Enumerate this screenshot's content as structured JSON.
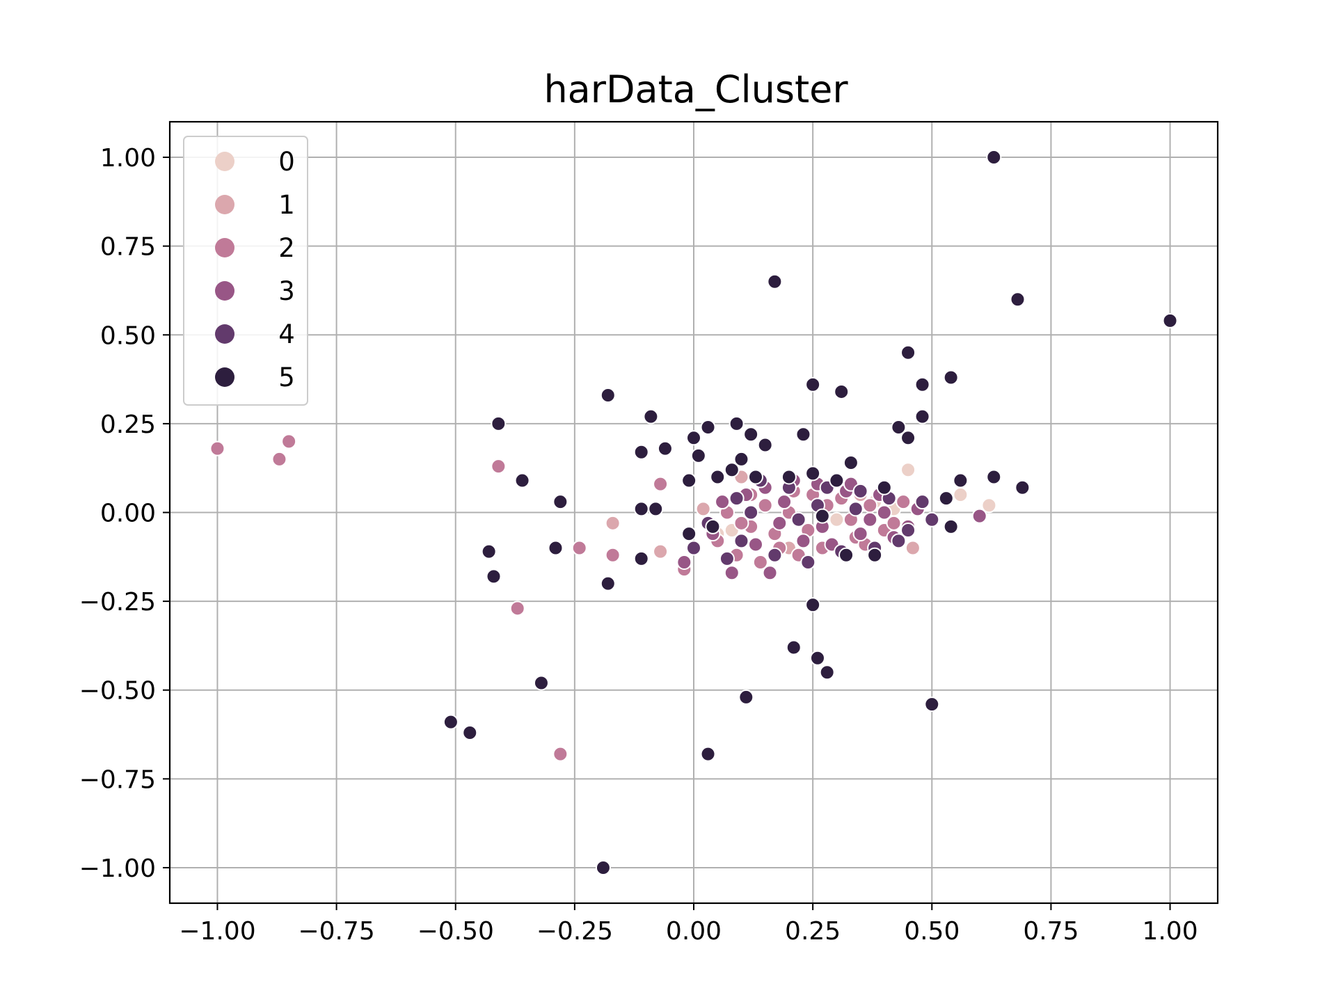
{
  "chart_data": {
    "type": "scatter",
    "title": "harData_Cluster",
    "xlabel": "",
    "ylabel": "",
    "xlim": [
      -1.1,
      1.1
    ],
    "ylim": [
      -1.1,
      1.1
    ],
    "xticks": [
      -1.0,
      -0.75,
      -0.5,
      -0.25,
      0.0,
      0.25,
      0.5,
      0.75,
      1.0
    ],
    "xtick_labels": [
      "−1.00",
      "−0.75",
      "−0.50",
      "−0.25",
      "0.00",
      "0.25",
      "0.50",
      "0.75",
      "1.00"
    ],
    "yticks": [
      1.0,
      0.75,
      0.5,
      0.25,
      0.0,
      -0.25,
      -0.5,
      -0.75,
      -1.0
    ],
    "ytick_labels": [
      "1.00",
      "0.75",
      "0.50",
      "0.25",
      "0.00",
      "−0.25",
      "−0.50",
      "−0.75",
      "−1.00"
    ],
    "grid": true,
    "legend_position": "top-left",
    "legend": [
      {
        "label": "0",
        "color": "#ecd0c8"
      },
      {
        "label": "1",
        "color": "#dba7ad"
      },
      {
        "label": "2",
        "color": "#c07a98"
      },
      {
        "label": "3",
        "color": "#985686"
      },
      {
        "label": "4",
        "color": "#623a6c"
      },
      {
        "label": "5",
        "color": "#2d1e3e"
      }
    ],
    "series": [
      {
        "name": "0",
        "color": "#ecd0c8",
        "points": [
          [
            0.45,
            0.12
          ],
          [
            0.56,
            0.05
          ],
          [
            0.62,
            0.02
          ],
          [
            0.05,
            -0.06
          ],
          [
            0.08,
            -0.05
          ],
          [
            0.38,
            0.03
          ],
          [
            0.3,
            -0.02
          ],
          [
            0.42,
            0.01
          ]
        ]
      },
      {
        "name": "1",
        "color": "#dba7ad",
        "points": [
          [
            -0.17,
            -0.03
          ],
          [
            -0.07,
            -0.11
          ],
          [
            0.02,
            0.01
          ],
          [
            0.46,
            -0.1
          ],
          [
            0.6,
            -0.01
          ],
          [
            0.1,
            0.1
          ],
          [
            0.2,
            -0.1
          ],
          [
            0.35,
            0.05
          ]
        ]
      },
      {
        "name": "2",
        "color": "#c07a98",
        "points": [
          [
            -1.0,
            0.18
          ],
          [
            -0.87,
            0.15
          ],
          [
            -0.85,
            0.2
          ],
          [
            -0.41,
            0.13
          ],
          [
            -0.37,
            -0.27
          ],
          [
            -0.28,
            -0.68
          ],
          [
            -0.24,
            -0.1
          ],
          [
            -0.17,
            -0.12
          ],
          [
            -0.07,
            0.08
          ],
          [
            -0.02,
            -0.16
          ],
          [
            0.05,
            -0.08
          ],
          [
            0.09,
            -0.12
          ],
          [
            0.12,
            -0.04
          ],
          [
            0.15,
            0.02
          ],
          [
            0.18,
            -0.1
          ],
          [
            0.21,
            0.06
          ],
          [
            0.24,
            -0.05
          ],
          [
            0.27,
            -0.1
          ],
          [
            0.31,
            0.04
          ],
          [
            0.34,
            -0.07
          ],
          [
            0.37,
            0.02
          ],
          [
            0.4,
            -0.05
          ],
          [
            0.44,
            0.03
          ],
          [
            0.14,
            -0.14
          ],
          [
            0.2,
            0.0
          ],
          [
            0.1,
            -0.03
          ],
          [
            0.28,
            0.02
          ],
          [
            0.33,
            -0.02
          ],
          [
            0.25,
            0.05
          ],
          [
            0.17,
            -0.06
          ],
          [
            0.07,
            0.0
          ],
          [
            0.22,
            -0.12
          ],
          [
            0.36,
            -0.09
          ],
          [
            0.42,
            -0.03
          ],
          [
            0.12,
            0.05
          ]
        ]
      },
      {
        "name": "3",
        "color": "#985686",
        "points": [
          [
            -0.02,
            -0.14
          ],
          [
            0.04,
            -0.06
          ],
          [
            0.08,
            -0.17
          ],
          [
            0.11,
            0.05
          ],
          [
            0.16,
            -0.17
          ],
          [
            0.19,
            0.03
          ],
          [
            0.23,
            -0.08
          ],
          [
            0.26,
            0.08
          ],
          [
            0.29,
            -0.09
          ],
          [
            0.32,
            0.06
          ],
          [
            0.35,
            -0.06
          ],
          [
            0.39,
            0.05
          ],
          [
            0.42,
            -0.07
          ],
          [
            0.47,
            0.01
          ],
          [
            0.5,
            -0.02
          ],
          [
            0.6,
            -0.01
          ],
          [
            0.13,
            -0.09
          ],
          [
            0.21,
            0.09
          ],
          [
            0.37,
            -0.02
          ],
          [
            0.45,
            -0.04
          ],
          [
            0.06,
            0.03
          ],
          [
            0.27,
            -0.04
          ],
          [
            0.15,
            0.07
          ],
          [
            0.33,
            0.08
          ],
          [
            0.4,
            0.0
          ],
          [
            0.18,
            -0.03
          ]
        ]
      },
      {
        "name": "4",
        "color": "#623a6c",
        "points": [
          [
            0.0,
            -0.1
          ],
          [
            0.03,
            -0.03
          ],
          [
            0.07,
            -0.13
          ],
          [
            0.1,
            -0.08
          ],
          [
            0.14,
            0.09
          ],
          [
            0.17,
            -0.12
          ],
          [
            0.2,
            0.07
          ],
          [
            0.24,
            -0.14
          ],
          [
            0.28,
            0.07
          ],
          [
            0.31,
            -0.11
          ],
          [
            0.35,
            0.06
          ],
          [
            0.38,
            -0.1
          ],
          [
            0.41,
            0.04
          ],
          [
            0.45,
            -0.05
          ],
          [
            0.48,
            0.03
          ],
          [
            0.5,
            -0.02
          ],
          [
            0.26,
            0.02
          ],
          [
            0.12,
            0.0
          ],
          [
            0.34,
            0.01
          ],
          [
            0.22,
            -0.02
          ],
          [
            0.43,
            -0.08
          ],
          [
            0.09,
            0.04
          ]
        ]
      },
      {
        "name": "5",
        "color": "#2d1e3e",
        "points": [
          [
            0.63,
            1.0
          ],
          [
            0.17,
            0.65
          ],
          [
            0.68,
            0.6
          ],
          [
            1.0,
            0.54
          ],
          [
            0.45,
            0.45
          ],
          [
            0.54,
            0.38
          ],
          [
            0.48,
            0.36
          ],
          [
            0.25,
            0.36
          ],
          [
            0.31,
            0.34
          ],
          [
            -0.18,
            0.33
          ],
          [
            -0.09,
            0.27
          ],
          [
            0.48,
            0.27
          ],
          [
            -0.41,
            0.25
          ],
          [
            0.03,
            0.24
          ],
          [
            0.09,
            0.25
          ],
          [
            0.43,
            0.24
          ],
          [
            0.45,
            0.21
          ],
          [
            0.23,
            0.22
          ],
          [
            0.12,
            0.22
          ],
          [
            0.0,
            0.21
          ],
          [
            0.15,
            0.19
          ],
          [
            -0.06,
            0.18
          ],
          [
            -0.11,
            0.17
          ],
          [
            0.01,
            0.16
          ],
          [
            0.1,
            0.15
          ],
          [
            0.33,
            0.14
          ],
          [
            0.08,
            0.12
          ],
          [
            -0.36,
            0.09
          ],
          [
            -0.01,
            0.09
          ],
          [
            0.05,
            0.1
          ],
          [
            0.63,
            0.1
          ],
          [
            0.56,
            0.09
          ],
          [
            0.69,
            0.07
          ],
          [
            -0.28,
            0.03
          ],
          [
            -0.11,
            0.01
          ],
          [
            -0.08,
            0.01
          ],
          [
            0.53,
            0.04
          ],
          [
            0.27,
            -0.01
          ],
          [
            0.04,
            -0.04
          ],
          [
            0.54,
            -0.04
          ],
          [
            -0.01,
            -0.06
          ],
          [
            -0.43,
            -0.11
          ],
          [
            -0.29,
            -0.1
          ],
          [
            -0.11,
            -0.13
          ],
          [
            -0.42,
            -0.18
          ],
          [
            -0.18,
            -0.2
          ],
          [
            0.32,
            -0.12
          ],
          [
            0.38,
            -0.12
          ],
          [
            0.25,
            -0.26
          ],
          [
            0.21,
            -0.38
          ],
          [
            0.26,
            -0.41
          ],
          [
            0.28,
            -0.45
          ],
          [
            -0.32,
            -0.48
          ],
          [
            0.11,
            -0.52
          ],
          [
            0.5,
            -0.54
          ],
          [
            -0.51,
            -0.59
          ],
          [
            -0.47,
            -0.62
          ],
          [
            0.03,
            -0.68
          ],
          [
            -0.19,
            -1.0
          ],
          [
            0.25,
            0.11
          ],
          [
            0.4,
            0.07
          ],
          [
            0.3,
            0.09
          ],
          [
            0.2,
            0.1
          ],
          [
            0.13,
            0.1
          ]
        ]
      }
    ]
  }
}
